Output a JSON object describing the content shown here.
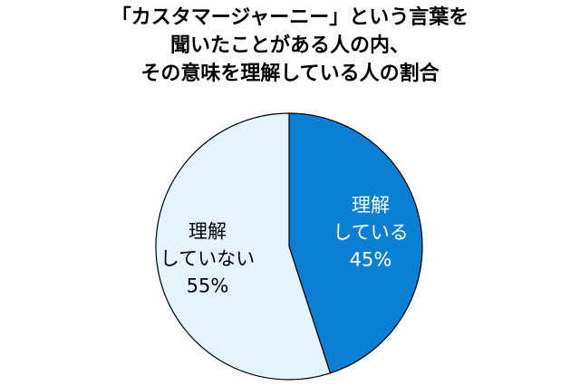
{
  "chart_data": {
    "type": "pie",
    "title_lines": [
      "「カスタマージャーニー」という言葉を",
      "聞いたことがある人の内、",
      "その意味を理解している人の割合"
    ],
    "slices": [
      {
        "label_lines": [
          "理解",
          "している",
          "45%"
        ],
        "value": 45,
        "color": "#0a7fd4",
        "label_color": "#ffffff"
      },
      {
        "label_lines": [
          "理解",
          "していない",
          "55%"
        ],
        "value": 55,
        "color": "#e4f4fc",
        "label_color": "#000000"
      }
    ],
    "start": "12 o'clock",
    "direction": "clockwise",
    "legend": "none",
    "border_color": "#000000"
  }
}
